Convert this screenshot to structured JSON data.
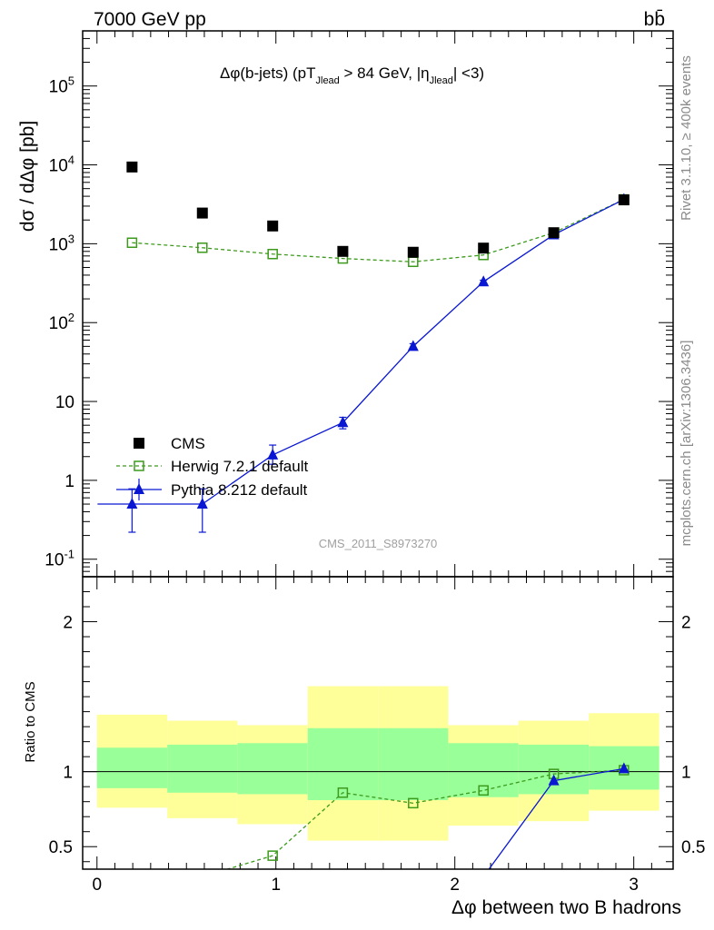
{
  "header": {
    "left_text": "7000 GeV pp",
    "right_text": "bb̄"
  },
  "side_texts": {
    "rivet": "Rivet 3.1.10, ≥ 400k events",
    "mcplots": "mcplots.cern.ch [arXiv:1306.3436]"
  },
  "chart_data": [
    {
      "type": "scatter",
      "title": "Δφ(b-jets) (pT_Jlead > 84 GeV, |η_Jlead| <3)",
      "watermark": "CMS_2011_S8973270",
      "ylabel": "dσ / dΔφ [pb]",
      "xlabel": "",
      "yscale": "log",
      "ylim": [
        0.06,
        500000
      ],
      "xlim": [
        -0.08,
        3.22
      ],
      "y_tick_labels": [
        "10^{-1}",
        "1",
        "10",
        "10^{2}",
        "10^{3}",
        "10^{4}",
        "10^{5}"
      ],
      "legend_position": "bottom-left",
      "series": [
        {
          "name": "CMS",
          "color": "#000000",
          "marker": "filled-square",
          "x": [
            0.196,
            0.589,
            0.982,
            1.374,
            1.767,
            2.16,
            2.553,
            2.945
          ],
          "y": [
            9400,
            2450,
            1680,
            800,
            780,
            880,
            1380,
            3600
          ]
        },
        {
          "name": "Herwig 7.2.1 default",
          "color": "#3c9a1c",
          "marker": "open-square",
          "line": "dashed",
          "x": [
            0.196,
            0.589,
            0.982,
            1.374,
            1.767,
            2.16,
            2.553,
            2.945
          ],
          "y": [
            1030,
            890,
            740,
            650,
            590,
            720,
            1380,
            3650
          ]
        },
        {
          "name": "Pythia 8.212 default",
          "color": "#0a17d2",
          "marker": "filled-triangle",
          "line": "solid",
          "x": [
            0.196,
            0.589,
            0.982,
            1.374,
            1.767,
            2.16,
            2.553,
            2.945
          ],
          "y": [
            0.5,
            0.5,
            2.1,
            5.4,
            50,
            330,
            1300,
            3650
          ],
          "y_err_low": [
            0.22,
            0.22,
            1.6,
            4.5,
            46,
            315,
            1250,
            3500
          ],
          "y_err_high": [
            0.78,
            0.78,
            2.8,
            6.3,
            54,
            345,
            1350,
            3800
          ]
        }
      ]
    },
    {
      "type": "line",
      "ylabel": "Ratio to CMS",
      "xlabel": "Δφ between two B hadrons",
      "ylim": [
        0.35,
        2.3
      ],
      "xlim": [
        -0.08,
        3.22
      ],
      "x_ticks": [
        0,
        1,
        2,
        3
      ],
      "y_ticks": [
        0.5,
        1,
        2
      ],
      "reference_line": 1,
      "bins": [
        0,
        0.393,
        0.785,
        1.178,
        1.571,
        1.963,
        2.356,
        2.749,
        3.142
      ],
      "bands": {
        "outer_color": "#ffff99",
        "inner_color": "#99ff99",
        "outer_low": [
          0.76,
          0.69,
          0.65,
          0.54,
          0.54,
          0.64,
          0.67,
          0.74
        ],
        "outer_high": [
          1.38,
          1.34,
          1.31,
          1.57,
          1.57,
          1.31,
          1.34,
          1.39
        ],
        "inner_low": [
          0.89,
          0.86,
          0.85,
          0.81,
          0.81,
          0.83,
          0.85,
          0.88
        ],
        "inner_high": [
          1.16,
          1.18,
          1.19,
          1.29,
          1.29,
          1.19,
          1.18,
          1.17
        ]
      },
      "series": [
        {
          "name": "Herwig 7.2.1 default",
          "color": "#3c9a1c",
          "marker": "open-square",
          "line": "dashed",
          "x": [
            0.589,
            0.982,
            1.374,
            1.767,
            2.16,
            2.553,
            2.945
          ],
          "y": [
            0.3,
            0.44,
            0.86,
            0.79,
            0.875,
            0.985,
            1.01
          ]
        },
        {
          "name": "Pythia 8.212 default",
          "color": "#0a17d2",
          "marker": "filled-triangle",
          "line": "solid",
          "x": [
            2.16,
            2.553,
            2.945
          ],
          "y": [
            0.3,
            0.94,
            1.02
          ]
        }
      ]
    }
  ]
}
